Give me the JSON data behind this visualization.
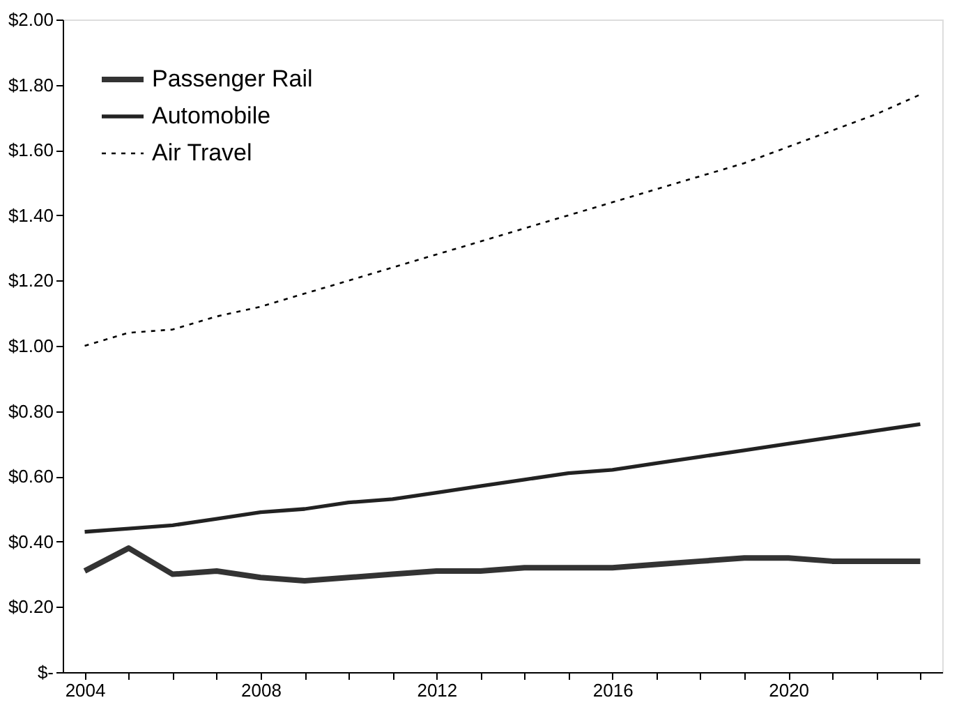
{
  "chart_data": {
    "type": "line",
    "categories": [
      "2004",
      null,
      null,
      null,
      "2008",
      null,
      null,
      null,
      "2012",
      null,
      null,
      null,
      "2016",
      null,
      null,
      null,
      "2020",
      null,
      null,
      null
    ],
    "series": [
      {
        "name": "Passenger Rail",
        "color": "#333333",
        "line_style": "solid",
        "values": [
          0.31,
          0.38,
          0.3,
          0.31,
          0.29,
          0.28,
          0.29,
          0.3,
          0.31,
          0.31,
          0.32,
          0.32,
          0.32,
          0.33,
          0.34,
          0.35,
          0.35,
          0.34,
          0.34,
          0.34
        ]
      },
      {
        "name": "Automobile",
        "color": "#222222",
        "line_style": "solid",
        "values": [
          0.43,
          0.44,
          0.45,
          0.47,
          0.49,
          0.5,
          0.52,
          0.53,
          0.55,
          0.57,
          0.59,
          0.61,
          0.62,
          0.64,
          0.66,
          0.68,
          0.7,
          0.72,
          0.74,
          0.76
        ]
      },
      {
        "name": "Air Travel",
        "color": "#000000",
        "line_style": "dotted",
        "values": [
          1.0,
          1.04,
          1.05,
          1.09,
          1.12,
          1.16,
          1.2,
          1.24,
          1.28,
          1.32,
          1.36,
          1.4,
          1.44,
          1.48,
          1.52,
          1.56,
          1.61,
          1.66,
          1.71,
          1.77
        ]
      }
    ],
    "ylim": [
      0,
      2
    ],
    "yticks": [
      {
        "value": 0,
        "label": "$-"
      },
      {
        "value": 0.2,
        "label": "$0.20"
      },
      {
        "value": 0.4,
        "label": "$0.40"
      },
      {
        "value": 0.6,
        "label": "$0.60"
      },
      {
        "value": 0.8,
        "label": "$0.80"
      },
      {
        "value": 1.0,
        "label": "$1.00"
      },
      {
        "value": 1.2,
        "label": "$1.20"
      },
      {
        "value": 1.4,
        "label": "$1.40"
      },
      {
        "value": 1.6,
        "label": "$1.60"
      },
      {
        "value": 1.8,
        "label": "$1.80"
      },
      {
        "value": 2.0,
        "label": "$2.00"
      }
    ],
    "grid": false,
    "legend": "top left",
    "marker": "none"
  }
}
